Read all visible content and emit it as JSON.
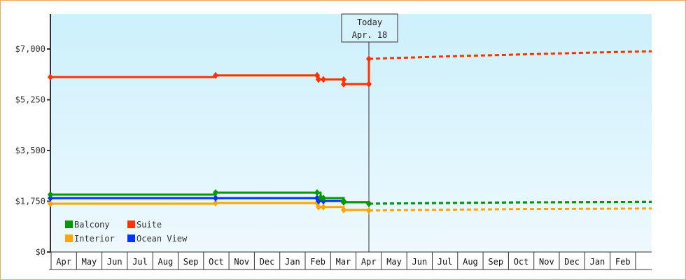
{
  "chart_data": {
    "type": "line",
    "title": "",
    "xlabel": "",
    "ylabel": "",
    "ylim": [
      0,
      8000
    ],
    "y_ticks": [
      "$0",
      "$1,750",
      "$3,500",
      "$5,250",
      "$7,000"
    ],
    "y_tick_values": [
      0,
      1750,
      3500,
      5250,
      7000
    ],
    "x_ticks": [
      "Apr",
      "May",
      "Jun",
      "Jul",
      "Aug",
      "Sep",
      "Oct",
      "Nov",
      "Dec",
      "Jan",
      "Feb",
      "Mar",
      "Apr",
      "May",
      "Jun",
      "Jul",
      "Aug",
      "Sep",
      "Oct",
      "Nov",
      "Dec",
      "Jan",
      "Feb"
    ],
    "grid": false,
    "legend_position": "bottom-left inside",
    "annotation": {
      "line1": "Today",
      "line2": "Apr. 18"
    },
    "series": [
      {
        "name": "Balcony",
        "color": "#009900",
        "historical": [
          [
            "Apr",
            1980
          ],
          [
            "Oct",
            2050
          ],
          [
            "Feb",
            2050
          ],
          [
            "Feb",
            1880
          ],
          [
            "Feb",
            1860
          ],
          [
            "Mar",
            1760
          ],
          [
            "Mar",
            1715
          ],
          [
            "Apr 18",
            1665
          ]
        ],
        "forecast": [
          [
            "Apr 18",
            1665
          ],
          [
            "Jul",
            1690
          ],
          [
            "Oct",
            1710
          ],
          [
            "Feb",
            1730
          ]
        ]
      },
      {
        "name": "Suite",
        "color": "#ff3300",
        "historical": [
          [
            "Apr",
            6030
          ],
          [
            "Oct",
            6090
          ],
          [
            "Feb",
            6090
          ],
          [
            "Feb",
            5950
          ],
          [
            "Feb",
            5950
          ],
          [
            "Mar",
            5940
          ],
          [
            "Mar",
            5790
          ],
          [
            "Apr 18",
            5790
          ],
          [
            "Apr 18",
            6660
          ]
        ],
        "forecast": [
          [
            "Apr 18",
            6660
          ],
          [
            "Jul",
            6740
          ],
          [
            "Oct",
            6810
          ],
          [
            "Jan",
            6880
          ],
          [
            "Feb",
            6920
          ]
        ]
      },
      {
        "name": "Interior",
        "color": "#ffa500",
        "historical": [
          [
            "Apr",
            1665
          ],
          [
            "Oct",
            1690
          ],
          [
            "Feb",
            1690
          ],
          [
            "Feb",
            1550
          ],
          [
            "Feb",
            1550
          ],
          [
            "Mar",
            1450
          ],
          [
            "Apr 18",
            1430
          ]
        ],
        "forecast": [
          [
            "Apr 18",
            1430
          ],
          [
            "Jun",
            1450
          ],
          [
            "Oct",
            1480
          ],
          [
            "Feb",
            1500
          ]
        ]
      },
      {
        "name": "Ocean View",
        "color": "#0033ff",
        "historical": [
          [
            "Apr",
            1860
          ],
          [
            "Oct",
            1860
          ],
          [
            "Feb",
            1860
          ],
          [
            "Feb",
            1760
          ],
          [
            "Feb",
            1760
          ],
          [
            "Mar",
            1720
          ],
          [
            "Apr 18",
            1665
          ]
        ],
        "forecast": [
          [
            "Apr 18",
            1665
          ],
          [
            "Oct",
            1710
          ],
          [
            "Feb",
            1730
          ]
        ]
      }
    ]
  },
  "legend": [
    {
      "label": "Balcony",
      "color": "#009900"
    },
    {
      "label": "Suite",
      "color": "#ff3300"
    },
    {
      "label": "Interior",
      "color": "#ffa500"
    },
    {
      "label": "Ocean View",
      "color": "#0033ff"
    }
  ],
  "today": {
    "line1": "Today",
    "line2": "Apr. 18"
  }
}
